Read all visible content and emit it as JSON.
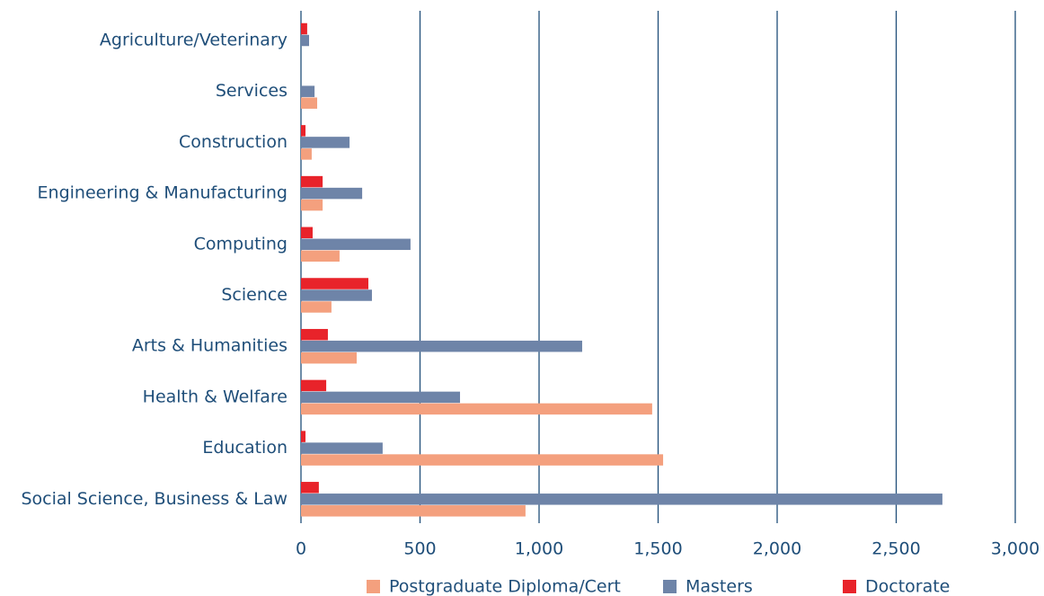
{
  "chart_data": {
    "type": "hbar",
    "categories": [
      "Agriculture/Veterinary",
      "Services",
      "Construction",
      "Engineering & Manufacturing",
      "Computing",
      "Science",
      "Arts & Humanities",
      "Health & Welfare",
      "Education",
      "Social Science, Business & Law"
    ],
    "series": [
      {
        "name": "Postgraduate Diploma/Cert",
        "color": "#f4a07e",
        "values": [
          0,
          68,
          45,
          91,
          162,
          128,
          234,
          1475,
          1521,
          943
        ]
      },
      {
        "name": "Masters",
        "color": "#6e84a8",
        "values": [
          34,
          57,
          204,
          257,
          460,
          298,
          1181,
          668,
          343,
          2694
        ]
      },
      {
        "name": "Doctorate",
        "color": "#e8232a",
        "values": [
          26,
          0,
          19,
          91,
          49,
          283,
          113,
          106,
          19,
          75
        ]
      }
    ],
    "xlim": [
      0,
      3000
    ],
    "xticks": [
      0,
      500,
      {
        "value": 1000,
        "label": "1,000"
      },
      {
        "value": 1500,
        "label": "1,500"
      },
      {
        "value": 2000,
        "label": "2,000"
      },
      {
        "value": 2500,
        "label": "2,500"
      },
      {
        "value": 3000,
        "label": "3,000"
      }
    ],
    "grid": true,
    "legend": "bottom"
  }
}
